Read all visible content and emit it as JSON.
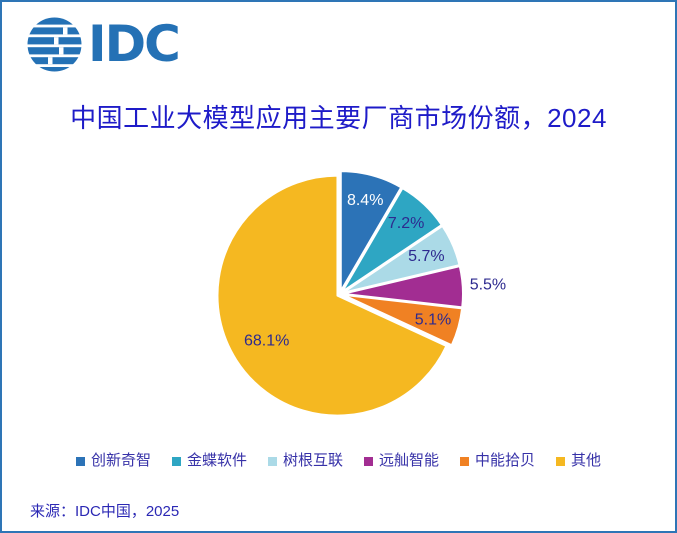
{
  "logo": {
    "text": "IDC",
    "color": "#2471b5"
  },
  "header": {
    "title": "中国工业大模型应用主要厂商市场份额，2024",
    "color": "#1e1bc8"
  },
  "chart_data": {
    "type": "pie",
    "title": "中国工业大模型应用主要厂商市场份额，2024",
    "unit": "%",
    "direction": "clockwise",
    "start_angle_deg": 0,
    "legend_position": "bottom",
    "categories": [
      "创新奇智",
      "金蝶软件",
      "树根互联",
      "远舢智能",
      "中能拾贝",
      "其他"
    ],
    "values": [
      8.4,
      7.2,
      5.7,
      5.5,
      5.1,
      68.1
    ],
    "slices": [
      {
        "label": "创新奇智",
        "value": 8.4,
        "display": "8.4%",
        "color": "#2c73b7",
        "label_color": "#ffffff",
        "label_r": 0.78,
        "label_outside": false
      },
      {
        "label": "金蝶软件",
        "value": 7.2,
        "display": "7.2%",
        "color": "#2ea6c3",
        "label_color": "#2d2a8f",
        "label_r": 0.78,
        "label_outside": false
      },
      {
        "label": "树根互联",
        "value": 5.7,
        "display": "5.7%",
        "color": "#abdae7",
        "label_color": "#2d2a8f",
        "label_r": 0.76,
        "label_outside": false
      },
      {
        "label": "远舢智能",
        "value": 5.5,
        "display": "5.5%",
        "color": "#a22d92",
        "label_color": "#2d2a8f",
        "label_r": 1.21,
        "label_outside": true
      },
      {
        "label": "中能拾贝",
        "value": 5.1,
        "display": "5.1%",
        "color": "#f08123",
        "label_color": "#2d2a8f",
        "label_r": 0.78,
        "label_outside": false
      },
      {
        "label": "其他",
        "value": 68.1,
        "display": "68.1%",
        "color": "#f5b821",
        "label_color": "#2d2a8f",
        "label_r": 0.7,
        "label_outside": false
      }
    ]
  },
  "footer": {
    "source": "来源：IDC中国，2025"
  },
  "colors": {
    "frame_border": "#2e75b6",
    "title_text": "#1e1bc8",
    "label_text": "#2d2a8f",
    "legend_text": "#3732a8",
    "source_text": "#2b28b4",
    "logo_blue": "#2471b5"
  }
}
